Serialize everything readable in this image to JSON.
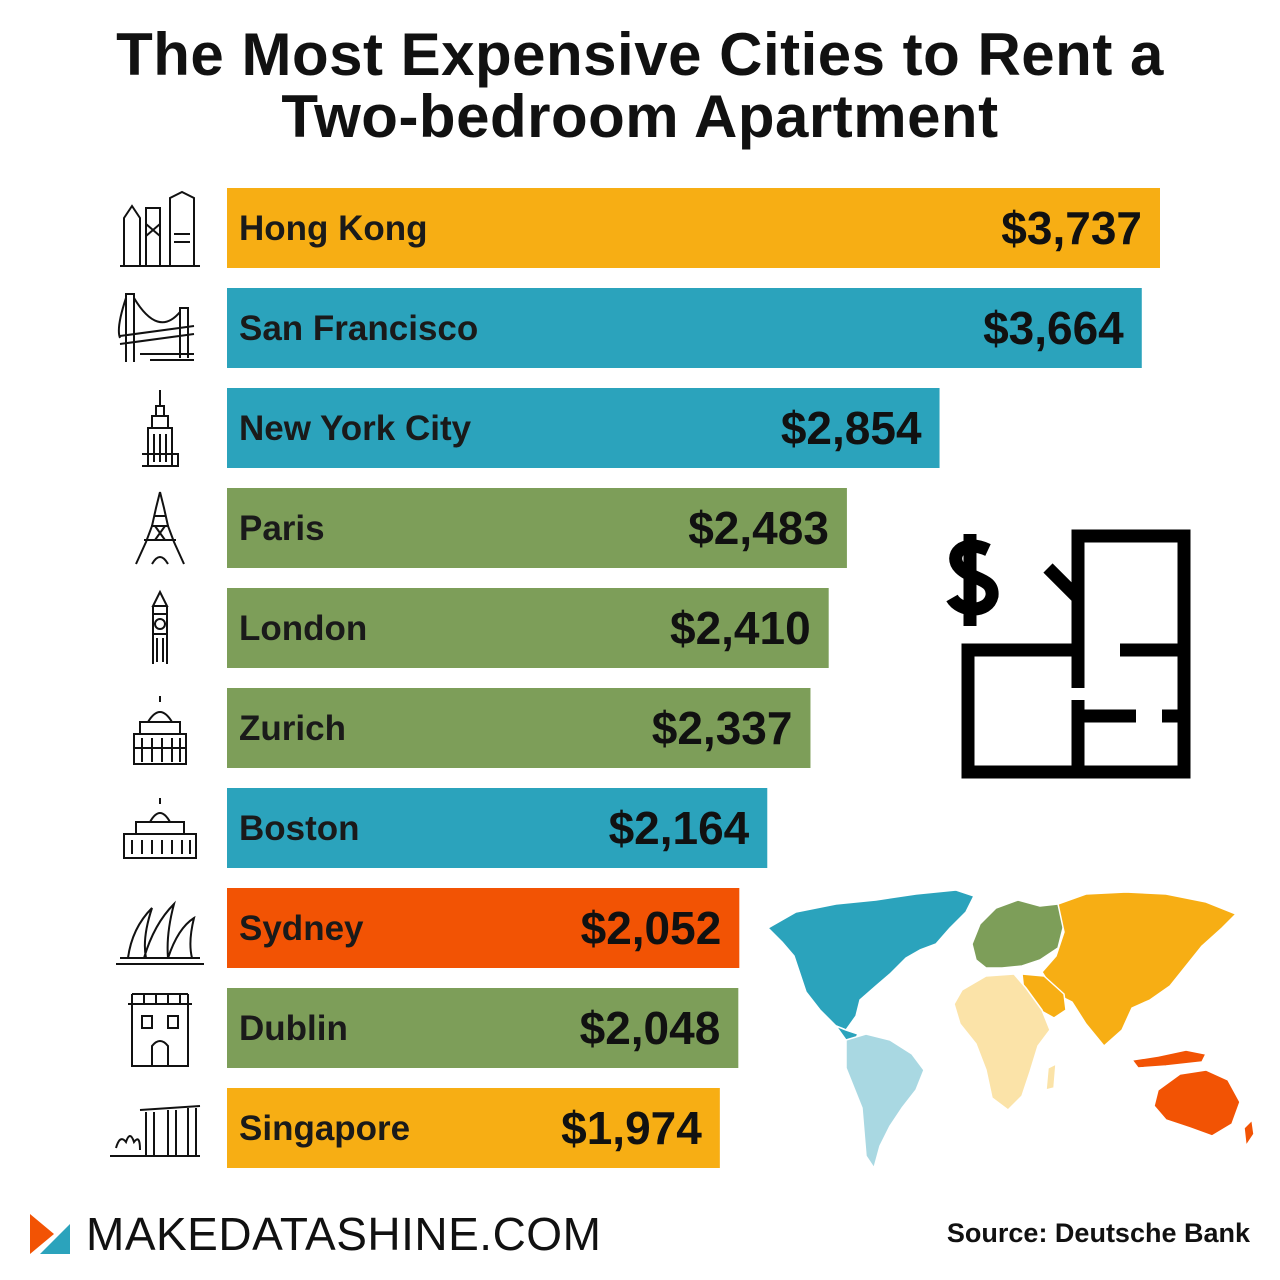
{
  "title": "The Most Expensive Cities to Rent a Two-bedroom Apartment",
  "chart_data": {
    "type": "bar",
    "orientation": "horizontal",
    "title": "The Most Expensive Cities to Rent a Two-bedroom Apartment",
    "categories": [
      "Hong Kong",
      "San Francisco",
      "New York City",
      "Paris",
      "London",
      "Zurich",
      "Boston",
      "Sydney",
      "Dublin",
      "Singapore"
    ],
    "values": [
      3737,
      3664,
      2854,
      2483,
      2410,
      2337,
      2164,
      2052,
      2048,
      1974
    ],
    "value_labels": [
      "$3,737",
      "$3,664",
      "$2,854",
      "$2,483",
      "$2,410",
      "$2,337",
      "$2,164",
      "$2,052",
      "$2,048",
      "$1,974"
    ],
    "regions": [
      "asia",
      "north-america",
      "north-america",
      "europe",
      "europe",
      "europe",
      "north-america",
      "oceania",
      "europe",
      "asia"
    ],
    "icons": [
      "hong-kong-skyline-icon",
      "golden-gate-bridge-icon",
      "empire-state-building-icon",
      "eiffel-tower-icon",
      "big-ben-icon",
      "zurich-building-icon",
      "boston-state-house-icon",
      "sydney-opera-house-icon",
      "dublin-castle-icon",
      "marina-bay-sands-icon"
    ],
    "region_colors": {
      "asia": "#f7ae14",
      "north-america": "#2ba3bc",
      "europe": "#7d9e59",
      "oceania": "#f25304",
      "south-america": "#a9d8e2",
      "africa": "#fbe3a8"
    },
    "xlabel": "",
    "ylabel": "",
    "grid": false,
    "legend": "none"
  },
  "decor": {
    "floorplan_icon": "dollar-floorplan-icon",
    "map_icon": "world-map-icon",
    "brand_icon": "makedatashine-logo-icon"
  },
  "footer": {
    "brand": "MAKEDATASHINE.COM",
    "source": "Source:  Deutsche Bank"
  }
}
